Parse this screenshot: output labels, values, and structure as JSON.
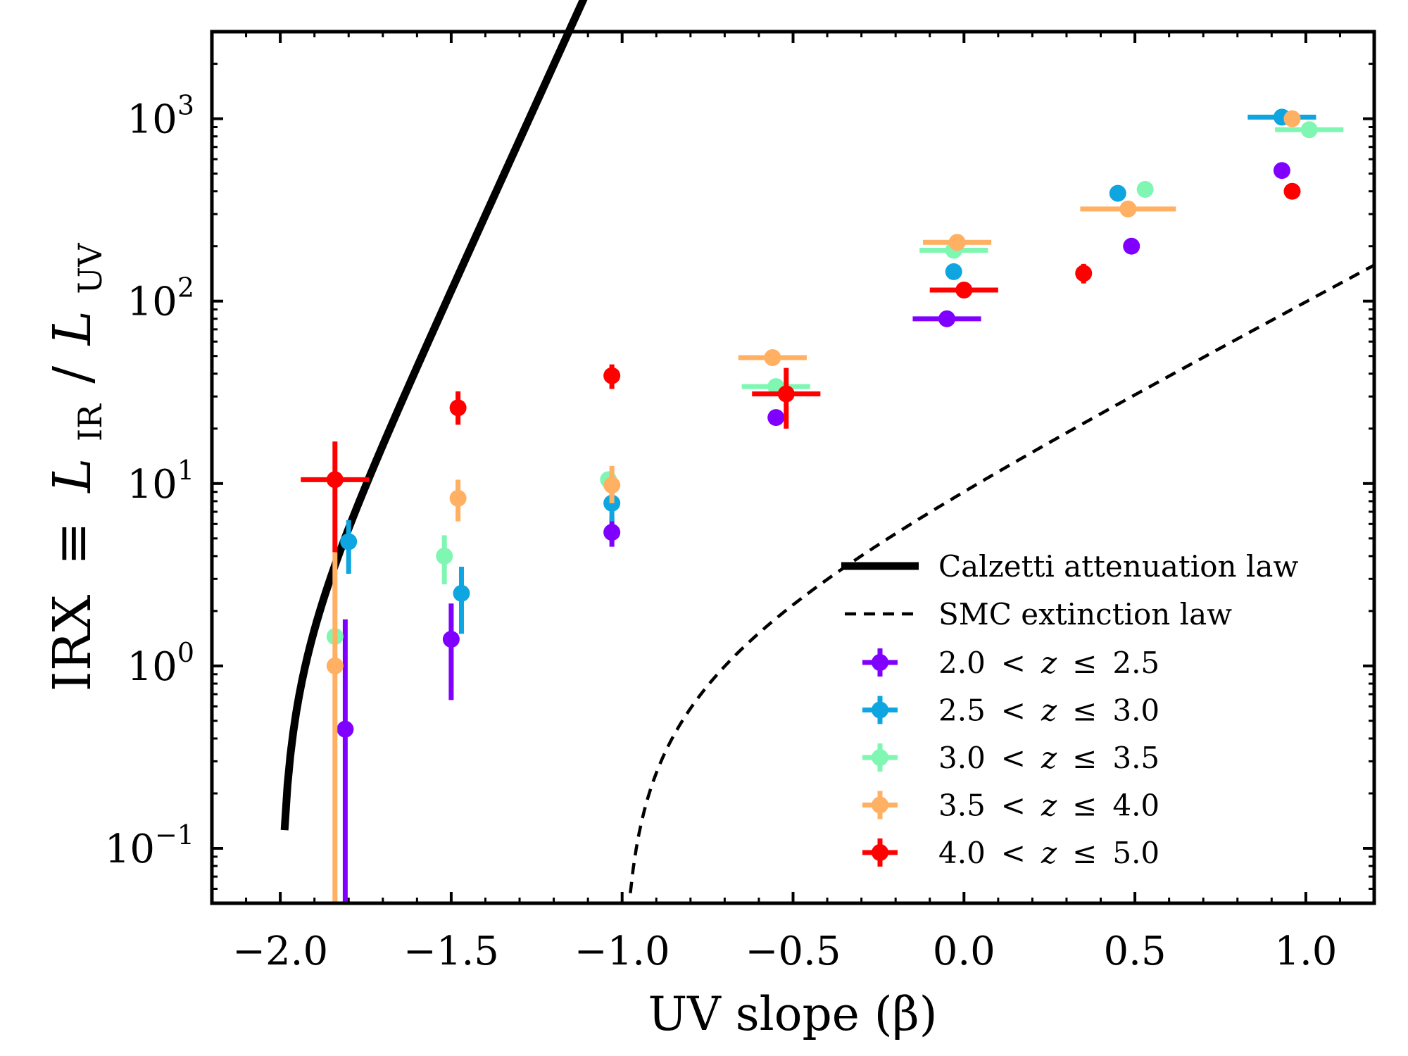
{
  "chart_data": {
    "type": "scatter",
    "xlabel": "UV slope (β)",
    "ylabel": "IRX ≡ L_IR / L_UV",
    "ylabel_parts": {
      "irx": "IRX",
      "equiv": "≡",
      "L": "L",
      "ir_sub": "IR",
      "slash": "/",
      "uv_sub": "UV"
    },
    "xlim": [
      -2.2,
      1.2
    ],
    "ylim": [
      0.05,
      3000
    ],
    "yscale": "log",
    "xticks": [
      -2.0,
      -1.5,
      -1.0,
      -0.5,
      0.0,
      0.5,
      1.0
    ],
    "xtick_labels": [
      "−2.0",
      "−1.5",
      "−1.0",
      "−0.5",
      "0.0",
      "0.5",
      "1.0"
    ],
    "yticks": [
      {
        "value": 0.1,
        "base": "10",
        "exp": "−1"
      },
      {
        "value": 1,
        "base": "10",
        "exp": "0"
      },
      {
        "value": 10,
        "base": "10",
        "exp": "1"
      },
      {
        "value": 100,
        "base": "10",
        "exp": "2"
      },
      {
        "value": 1000,
        "base": "10",
        "exp": "3"
      }
    ],
    "curves": [
      {
        "name": "Calzetti attenuation law",
        "style": "solid",
        "color": "#000000",
        "a": 10.3,
        "b": 2.0
      },
      {
        "name": "SMC extinction law",
        "style": "dashed",
        "color": "#000000",
        "a": 2.5,
        "b": 1.0
      }
    ],
    "legend_position": "bottom-right",
    "series": [
      {
        "name": "2.0 < z ≤ 2.5",
        "label_parts": [
          "2.0",
          "<",
          "z",
          "≤",
          "2.5"
        ],
        "color": "#8000ff",
        "points": [
          {
            "x": -1.81,
            "y": 0.45,
            "ylo": 0.05,
            "yhi": 1.8
          },
          {
            "x": -1.5,
            "y": 1.4,
            "ylo": 0.65,
            "yhi": 2.2
          },
          {
            "x": -1.03,
            "y": 5.4,
            "ylo": 4.5,
            "yhi": 6.5
          },
          {
            "x": -0.55,
            "y": 23
          },
          {
            "x": -0.05,
            "y": 80,
            "xlo": -0.15,
            "xhi": 0.05
          },
          {
            "x": 0.49,
            "y": 200
          },
          {
            "x": 0.93,
            "y": 520
          }
        ]
      },
      {
        "name": "2.5 < z ≤ 3.0",
        "label_parts": [
          "2.5",
          "<",
          "z",
          "≤",
          "3.0"
        ],
        "color": "#0ea5e0",
        "points": [
          {
            "x": -1.8,
            "y": 4.8,
            "ylo": 3.2,
            "yhi": 6.3
          },
          {
            "x": -1.47,
            "y": 2.5,
            "ylo": 1.5,
            "yhi": 3.5
          },
          {
            "x": -1.03,
            "y": 7.8,
            "ylo": 6.2,
            "yhi": 9.8
          },
          {
            "x": -0.03,
            "y": 145
          },
          {
            "x": 0.45,
            "y": 390
          },
          {
            "x": 0.93,
            "y": 1020,
            "xlo": 0.83,
            "xhi": 1.03
          }
        ]
      },
      {
        "name": "3.0 < z ≤ 3.5",
        "label_parts": [
          "3.0",
          "<",
          "z",
          "≤",
          "3.5"
        ],
        "color": "#7ff7b3",
        "points": [
          {
            "x": -1.84,
            "y": 1.45
          },
          {
            "x": -1.52,
            "y": 4.0,
            "ylo": 2.8,
            "yhi": 5.2
          },
          {
            "x": -1.04,
            "y": 10.5
          },
          {
            "x": -0.55,
            "y": 34,
            "xlo": -0.65,
            "xhi": -0.45
          },
          {
            "x": -0.03,
            "y": 190,
            "xlo": -0.13,
            "xhi": 0.07
          },
          {
            "x": 0.53,
            "y": 410
          },
          {
            "x": 1.01,
            "y": 870,
            "xlo": 0.91,
            "xhi": 1.11
          }
        ]
      },
      {
        "name": "3.5 < z ≤ 4.0",
        "label_parts": [
          "3.5",
          "<",
          "z",
          "≤",
          "4.0"
        ],
        "color": "#ffb062",
        "points": [
          {
            "x": -1.84,
            "y": 1.0,
            "ylo": 0.05,
            "yhi": 4.2
          },
          {
            "x": -1.48,
            "y": 8.3,
            "ylo": 6.2,
            "yhi": 10.5
          },
          {
            "x": -1.03,
            "y": 9.8,
            "ylo": 7.8,
            "yhi": 12.5
          },
          {
            "x": -0.56,
            "y": 49,
            "xlo": -0.66,
            "xhi": -0.46
          },
          {
            "x": -0.02,
            "y": 210,
            "xlo": -0.12,
            "xhi": 0.08
          },
          {
            "x": 0.48,
            "y": 320,
            "xlo": 0.34,
            "xhi": 0.62
          },
          {
            "x": 0.96,
            "y": 1000
          }
        ]
      },
      {
        "name": "4.0 < z ≤ 5.0",
        "label_parts": [
          "4.0",
          "<",
          "z",
          "≤",
          "5.0"
        ],
        "color": "#ff0000",
        "points": [
          {
            "x": -1.84,
            "y": 10.5,
            "ylo": 4.2,
            "yhi": 17,
            "xlo": -1.94,
            "xhi": -1.74
          },
          {
            "x": -1.48,
            "y": 26,
            "ylo": 21,
            "yhi": 32
          },
          {
            "x": -1.03,
            "y": 39,
            "ylo": 33,
            "yhi": 45
          },
          {
            "x": -0.52,
            "y": 31,
            "ylo": 20,
            "yhi": 43,
            "xlo": -0.62,
            "xhi": -0.42
          },
          {
            "x": 0.0,
            "y": 115,
            "xlo": -0.1,
            "xhi": 0.1
          },
          {
            "x": 0.35,
            "y": 142,
            "ylo": 125,
            "yhi": 160
          },
          {
            "x": 0.96,
            "y": 400
          }
        ]
      }
    ]
  }
}
